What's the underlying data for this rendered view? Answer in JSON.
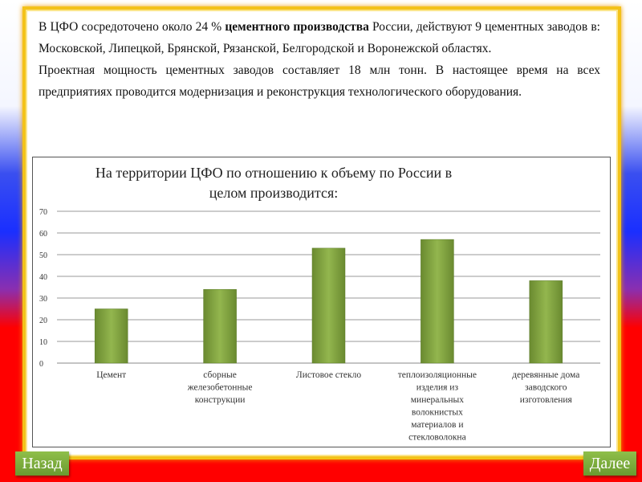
{
  "text": {
    "p1_a": "В ЦФО сосредоточено около 24 % ",
    "p1_b": "цементного производства",
    "p1_c": " России, действуют 9 цементных заводов в: Московской, Липецкой, Брянской, Рязанской, Белгородской и Воронежской областях.",
    "p2": "Проектная мощность цементных заводов составляет 18 млн тонн. В настоящее время на всех предприятиях проводится модернизация и реконструкция технологического оборудования."
  },
  "chart_data": {
    "type": "bar",
    "title": "На территории ЦФО по отношению к объему по России в целом производится:",
    "title_lines": [
      "На территории ЦФО по отношению к объему по России в",
      "целом производится:"
    ],
    "categories": [
      [
        "Цемент"
      ],
      [
        "сборные",
        "железобетонные",
        "конструкции"
      ],
      [
        "Листовое стекло"
      ],
      [
        "теплоизоляционные",
        "изделия из",
        "минеральных",
        "волокнистых",
        "материалов и",
        "стекловолокна"
      ],
      [
        "деревянные дома",
        "заводского",
        "изготовления"
      ]
    ],
    "values": [
      25,
      34,
      53,
      57,
      38
    ],
    "ylim": [
      0,
      70
    ],
    "yticks": [
      0,
      10,
      20,
      30,
      40,
      50,
      60,
      70
    ],
    "grid": true,
    "bar_color": "#76923c"
  },
  "nav": {
    "back": "Назад",
    "next": "Далее"
  }
}
